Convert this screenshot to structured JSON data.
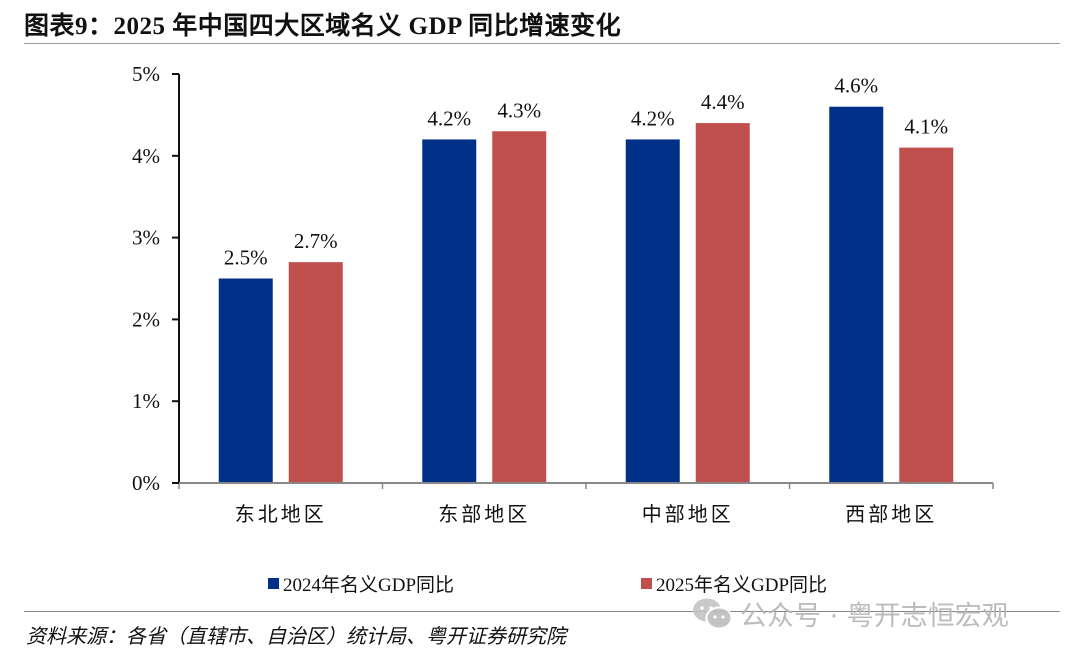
{
  "header": {
    "title": "图表9：2025 年中国四大区域名义 GDP 同比增速变化"
  },
  "chart_data": {
    "type": "bar",
    "title": "2025 年中国四大区域名义 GDP 同比增速变化",
    "xlabel": "",
    "ylabel": "",
    "categories": [
      "东北地区",
      "东部地区",
      "中部地区",
      "西部地区"
    ],
    "series": [
      {
        "name": "2024年名义GDP同比",
        "values": [
          2.5,
          4.2,
          4.2,
          4.6
        ],
        "labels": [
          "2.5%",
          "4.2%",
          "4.2%",
          "4.6%"
        ],
        "color": "#003087"
      },
      {
        "name": "2025年名义GDP同比",
        "values": [
          2.7,
          4.3,
          4.4,
          4.1
        ],
        "labels": [
          "2.7%",
          "4.3%",
          "4.4%",
          "4.1%"
        ],
        "color": "#C0504D"
      }
    ],
    "ylim": [
      0,
      5
    ],
    "yticks": [
      0,
      1,
      2,
      3,
      4,
      5
    ],
    "ytick_labels": [
      "0%",
      "1%",
      "2%",
      "3%",
      "4%",
      "5%"
    ],
    "grid": false,
    "legend_position": "bottom"
  },
  "footer": {
    "source": "资料来源：各省（直辖市、自治区）统计局、粤开证券研究院",
    "watermark": "公众号 · 粤开志恒宏观",
    "watermark_icon": "wechat-icon"
  }
}
